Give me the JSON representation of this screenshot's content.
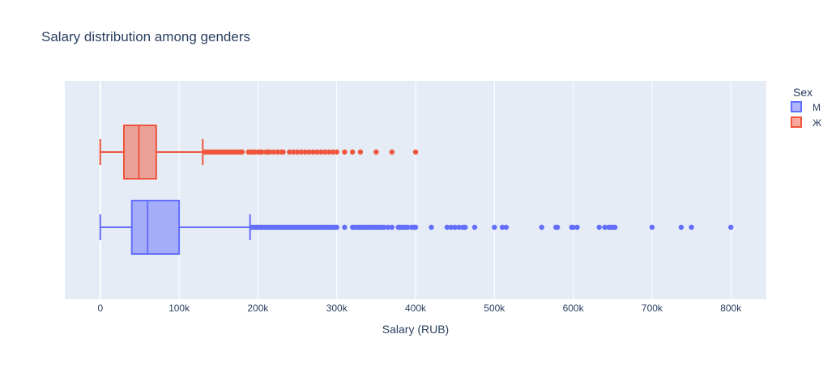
{
  "chart_data": {
    "type": "box",
    "orientation": "horizontal",
    "title": "Salary distribution among genders",
    "xlabel": "Salary (RUB)",
    "ylabel": "",
    "xlim": [
      -45000,
      845000
    ],
    "xticks": [
      0,
      100000,
      200000,
      300000,
      400000,
      500000,
      600000,
      700000,
      800000
    ],
    "xtick_labels": [
      "0",
      "100k",
      "200k",
      "300k",
      "400k",
      "500k",
      "600k",
      "700k",
      "800k"
    ],
    "grid": true,
    "legend": {
      "title": "Sex",
      "placement": "top-right"
    },
    "series": [
      {
        "name": "М",
        "color": "#636efa",
        "fill": "rgba(99,110,250,0.5)",
        "min": 0,
        "q1": 40000,
        "median": 60000,
        "q3": 100000,
        "upper_fence": 190000,
        "outliers": [
          192000,
          195000,
          198000,
          200000,
          203000,
          205000,
          208000,
          210000,
          213000,
          215000,
          218000,
          220000,
          223000,
          225000,
          228000,
          230000,
          233000,
          235000,
          238000,
          240000,
          243000,
          245000,
          248000,
          250000,
          253000,
          255000,
          258000,
          260000,
          263000,
          265000,
          268000,
          270000,
          273000,
          275000,
          278000,
          280000,
          283000,
          285000,
          288000,
          290000,
          293000,
          295000,
          298000,
          300000,
          310000,
          320000,
          322000,
          325000,
          328000,
          330000,
          333000,
          335000,
          338000,
          340000,
          343000,
          345000,
          348000,
          350000,
          353000,
          355000,
          358000,
          360000,
          365000,
          370000,
          378000,
          380000,
          383000,
          385000,
          388000,
          390000,
          395000,
          398000,
          400000,
          420000,
          440000,
          445000,
          450000,
          455000,
          460000,
          463000,
          475000,
          500000,
          510000,
          515000,
          560000,
          578000,
          580000,
          598000,
          600000,
          605000,
          633000,
          640000,
          645000,
          648000,
          650000,
          653000,
          700000,
          737000,
          750000,
          800000
        ]
      },
      {
        "name": "Ж",
        "color": "#ef553b",
        "fill": "rgba(239,85,59,0.5)",
        "min": 0,
        "q1": 30000,
        "median": 49000,
        "q3": 71000,
        "upper_fence": 130000,
        "outliers": [
          133000,
          135000,
          137000,
          140000,
          142000,
          145000,
          147000,
          150000,
          153000,
          155000,
          158000,
          160000,
          163000,
          165000,
          168000,
          170000,
          173000,
          175000,
          178000,
          180000,
          188000,
          190000,
          193000,
          196000,
          200000,
          203000,
          205000,
          210000,
          213000,
          215000,
          220000,
          225000,
          230000,
          232000,
          240000,
          245000,
          250000,
          255000,
          260000,
          265000,
          270000,
          275000,
          280000,
          285000,
          290000,
          295000,
          300000,
          310000,
          320000,
          330000,
          350000,
          370000,
          400000
        ]
      }
    ]
  }
}
